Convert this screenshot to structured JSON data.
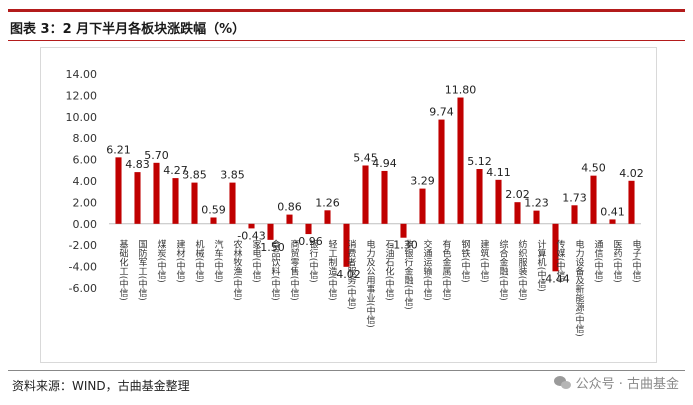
{
  "header": {
    "title": "图表 3：2 月下半月各板块涨跌幅（%）"
  },
  "footer": {
    "source": "资料来源：WIND，古曲基金整理",
    "watermark": "公众号 · 古曲基金"
  },
  "colors": {
    "bar": "#c00000",
    "rule": "#b31b1b"
  },
  "chart_data": {
    "type": "bar",
    "title": "图表 3：2 月下半月各板块涨跌幅（%）",
    "xlabel": "",
    "ylabel": "",
    "ylim": [
      -6,
      14
    ],
    "yticks": [
      "14.00",
      "12.00",
      "10.00",
      "8.00",
      "6.00",
      "4.00",
      "2.00",
      "0.00",
      "-2.00",
      "-4.00",
      "-6.00"
    ],
    "grid": false,
    "categories": [
      "基础化工(中信)",
      "国防军工(中信)",
      "煤炭(中信)",
      "建材(中信)",
      "机械(中信)",
      "汽车(中信)",
      "农林牧渔(中信)",
      "家电(中信)",
      "食品饮料(中信)",
      "商贸零售(中信)",
      "银行(中信)",
      "轻工制造(中信)",
      "消费者服务(中信)",
      "电力及公用事业(中信)",
      "石油石化(中信)",
      "非银行金融(中信)",
      "交通运输(中信)",
      "有色金属(中信)",
      "钢铁(中信)",
      "建筑(中信)",
      "综合金融(中信)",
      "纺织服装(中信)",
      "计算机(中信)",
      "传媒(中信)",
      "电力设备及新能源(中信)",
      "通信(中信)",
      "医药(中信)",
      "电子(中信)"
    ],
    "values": [
      6.21,
      4.83,
      5.7,
      4.27,
      3.85,
      0.59,
      3.85,
      -0.43,
      -1.5,
      0.86,
      -0.96,
      1.26,
      -4.02,
      5.45,
      4.94,
      -1.3,
      3.29,
      9.74,
      11.8,
      5.12,
      4.11,
      2.02,
      1.23,
      -4.44,
      1.73,
      4.5,
      0.41,
      4.02
    ],
    "data_labels": [
      "6.21",
      "4.83",
      "5.70",
      "4.27",
      "3.85",
      "0.59",
      "3.85",
      "-0.43",
      "-1.50",
      "0.86",
      "-0.96",
      "1.26",
      "-4.02",
      "5.45",
      "4.94",
      "-1.30",
      "3.29",
      "9.74",
      "11.80",
      "5.12",
      "4.11",
      "2.02",
      "1.23",
      "-4.44",
      "1.73",
      "4.50",
      "0.41",
      "4.02"
    ]
  }
}
